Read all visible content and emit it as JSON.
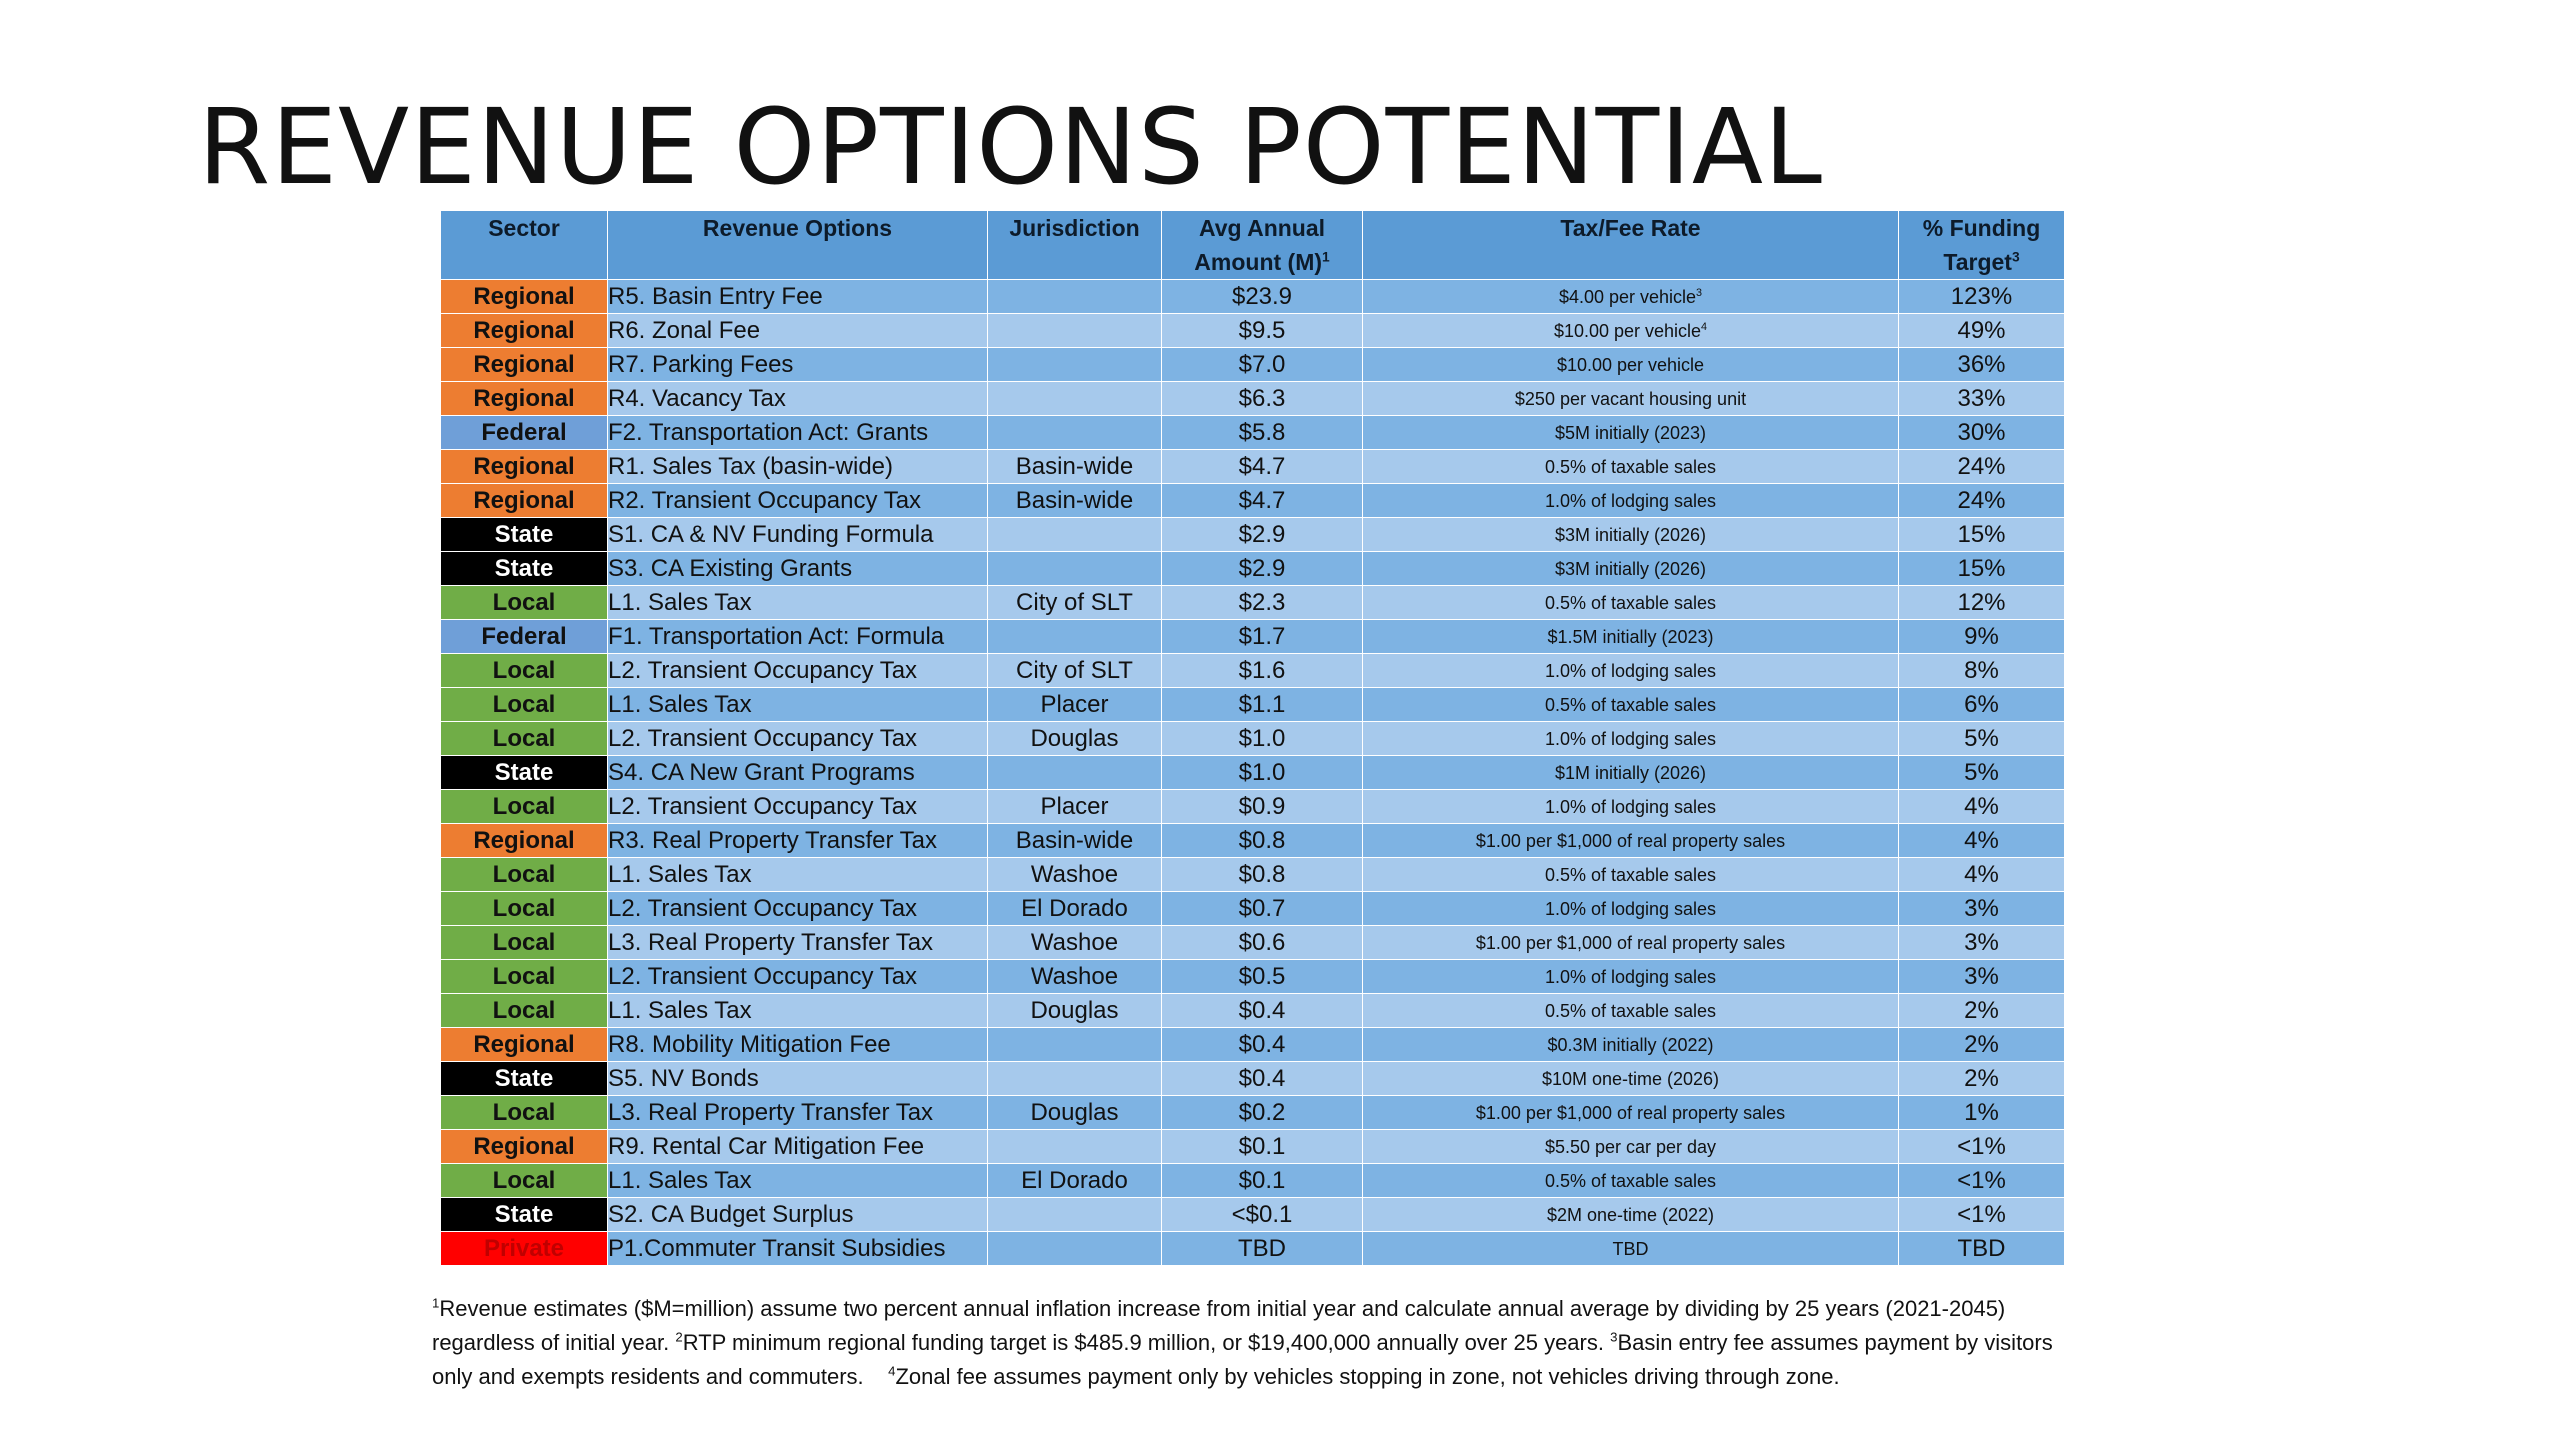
{
  "title": "REVENUE OPTIONS POTENTIAL",
  "table": {
    "headers": {
      "sector": "Sector",
      "option": "Revenue Options",
      "jurisdiction": "Jurisdiction",
      "amount": "Avg Annual Amount (M)",
      "amount_sup": "1",
      "rate": "Tax/Fee Rate",
      "target": "% Funding Target",
      "target_sup": "3"
    },
    "sector_colors": {
      "Regional": "#ed7d31",
      "Federal": "#6f9fd8",
      "State": "#000000",
      "Local": "#70ad47",
      "Private": "#ff0000"
    },
    "rows": [
      {
        "sector": "Regional",
        "option": "R5. Basin Entry Fee",
        "jurisdiction": "",
        "amount": "$23.9",
        "rate": "$4.00 per vehicle",
        "rate_sup": "3",
        "pct": "123%"
      },
      {
        "sector": "Regional",
        "option": "R6. Zonal Fee",
        "jurisdiction": "",
        "amount": "$9.5",
        "rate": "$10.00 per vehicle",
        "rate_sup": "4",
        "pct": "49%"
      },
      {
        "sector": "Regional",
        "option": "R7. Parking Fees",
        "jurisdiction": "",
        "amount": "$7.0",
        "rate": "$10.00 per vehicle",
        "rate_sup": "",
        "pct": "36%"
      },
      {
        "sector": "Regional",
        "option": "R4. Vacancy Tax",
        "jurisdiction": "",
        "amount": "$6.3",
        "rate": "$250 per vacant housing unit",
        "rate_sup": "",
        "pct": "33%"
      },
      {
        "sector": "Federal",
        "option": "F2. Transportation Act: Grants",
        "jurisdiction": "",
        "amount": "$5.8",
        "rate": "$5M initially (2023)",
        "rate_sup": "",
        "pct": "30%"
      },
      {
        "sector": "Regional",
        "option": "R1. Sales Tax (basin-wide)",
        "jurisdiction": "Basin-wide",
        "amount": "$4.7",
        "rate": "0.5% of taxable sales",
        "rate_sup": "",
        "pct": "24%"
      },
      {
        "sector": "Regional",
        "option": "R2. Transient Occupancy Tax",
        "jurisdiction": "Basin-wide",
        "amount": "$4.7",
        "rate": "1.0% of lodging sales",
        "rate_sup": "",
        "pct": "24%"
      },
      {
        "sector": "State",
        "option": "S1. CA & NV Funding Formula",
        "jurisdiction": "",
        "amount": "$2.9",
        "rate": "$3M initially (2026)",
        "rate_sup": "",
        "pct": "15%"
      },
      {
        "sector": "State",
        "option": "S3. CA Existing Grants",
        "jurisdiction": "",
        "amount": "$2.9",
        "rate": "$3M initially (2026)",
        "rate_sup": "",
        "pct": "15%"
      },
      {
        "sector": "Local",
        "option": "L1. Sales Tax",
        "jurisdiction": "City of SLT",
        "amount": "$2.3",
        "rate": "0.5% of taxable sales",
        "rate_sup": "",
        "pct": "12%"
      },
      {
        "sector": "Federal",
        "option": "F1. Transportation Act: Formula",
        "jurisdiction": "",
        "amount": "$1.7",
        "rate": "$1.5M initially (2023)",
        "rate_sup": "",
        "pct": "9%"
      },
      {
        "sector": "Local",
        "option": "L2.  Transient Occupancy Tax",
        "jurisdiction": "City of SLT",
        "amount": "$1.6",
        "rate": "1.0% of lodging sales",
        "rate_sup": "",
        "pct": "8%"
      },
      {
        "sector": "Local",
        "option": "L1. Sales Tax",
        "jurisdiction": "Placer",
        "amount": "$1.1",
        "rate": "0.5% of taxable sales",
        "rate_sup": "",
        "pct": "6%"
      },
      {
        "sector": "Local",
        "option": "L2.  Transient Occupancy Tax",
        "jurisdiction": "Douglas",
        "amount": "$1.0",
        "rate": "1.0% of lodging sales",
        "rate_sup": "",
        "pct": "5%"
      },
      {
        "sector": "State",
        "option": "S4. CA New Grant Programs",
        "jurisdiction": "",
        "amount": "$1.0",
        "rate": "$1M initially (2026)",
        "rate_sup": "",
        "pct": "5%"
      },
      {
        "sector": "Local",
        "option": "L2.  Transient Occupancy Tax",
        "jurisdiction": "Placer",
        "amount": "$0.9",
        "rate": "1.0% of lodging sales",
        "rate_sup": "",
        "pct": "4%"
      },
      {
        "sector": "Regional",
        "option": "R3. Real Property Transfer Tax",
        "jurisdiction": "Basin-wide",
        "amount": "$0.8",
        "rate": "$1.00 per $1,000 of real property sales",
        "rate_sup": "",
        "pct": "4%"
      },
      {
        "sector": "Local",
        "option": "L1. Sales Tax",
        "jurisdiction": "Washoe",
        "amount": "$0.8",
        "rate": "0.5% of taxable sales",
        "rate_sup": "",
        "pct": "4%"
      },
      {
        "sector": "Local",
        "option": "L2. Transient Occupancy Tax",
        "jurisdiction": "El Dorado",
        "amount": "$0.7",
        "rate": "1.0% of lodging sales",
        "rate_sup": "",
        "pct": "3%"
      },
      {
        "sector": "Local",
        "option": "L3.  Real Property Transfer Tax",
        "jurisdiction": "Washoe",
        "amount": "$0.6",
        "rate": "$1.00 per $1,000 of real property sales",
        "rate_sup": "",
        "pct": "3%"
      },
      {
        "sector": "Local",
        "option": "L2. Transient Occupancy Tax",
        "jurisdiction": "Washoe",
        "amount": "$0.5",
        "rate": "1.0% of lodging sales",
        "rate_sup": "",
        "pct": "3%"
      },
      {
        "sector": "Local",
        "option": "L1. Sales Tax",
        "jurisdiction": "Douglas",
        "amount": "$0.4",
        "rate": "0.5% of taxable sales",
        "rate_sup": "",
        "pct": "2%"
      },
      {
        "sector": "Regional",
        "option": "R8. Mobility Mitigation Fee",
        "jurisdiction": "",
        "amount": "$0.4",
        "rate": "$0.3M initially (2022)",
        "rate_sup": "",
        "pct": "2%"
      },
      {
        "sector": "State",
        "option": "S5. NV Bonds",
        "jurisdiction": "",
        "amount": "$0.4",
        "rate": "$10M one-time (2026)",
        "rate_sup": "",
        "pct": "2%"
      },
      {
        "sector": "Local",
        "option": "L3.  Real Property Transfer Tax",
        "jurisdiction": "Douglas",
        "amount": "$0.2",
        "rate": "$1.00 per $1,000 of real property sales",
        "rate_sup": "",
        "pct": "1%"
      },
      {
        "sector": "Regional",
        "option": "R9. Rental Car Mitigation Fee",
        "jurisdiction": "",
        "amount": "$0.1",
        "rate": "$5.50 per car per day",
        "rate_sup": "",
        "pct": "<1%"
      },
      {
        "sector": "Local",
        "option": "L1. Sales Tax",
        "jurisdiction": "El Dorado",
        "amount": "$0.1",
        "rate": "0.5% of taxable sales",
        "rate_sup": "",
        "pct": "<1%"
      },
      {
        "sector": "State",
        "option": "S2. CA Budget Surplus",
        "jurisdiction": "",
        "amount": "<$0.1",
        "rate": "$2M one-time (2022)",
        "rate_sup": "",
        "pct": "<1%"
      },
      {
        "sector": "Private",
        "option": "P1.Commuter Transit Subsidies",
        "jurisdiction": "",
        "amount": "TBD",
        "rate": "TBD",
        "rate_sup": "",
        "pct": "TBD"
      }
    ]
  },
  "footnote": {
    "sup1": "1",
    "text1": "Revenue estimates ($M=million) assume two percent annual inflation increase from initial year and calculate annual average by dividing by 25 years (2021-2045) regardless of initial year.",
    "sup2": "2",
    "text2": "RTP minimum regional funding target is $485.9 million, or $19,400,000 annually over 25 years.",
    "sup3": "3",
    "text3": "Basin entry fee assumes payment by visitors only and exempts residents and commuters.",
    "sup4": "4",
    "text4": "Zonal fee assumes payment only by vehicles stopping in zone, not vehicles driving through zone."
  }
}
